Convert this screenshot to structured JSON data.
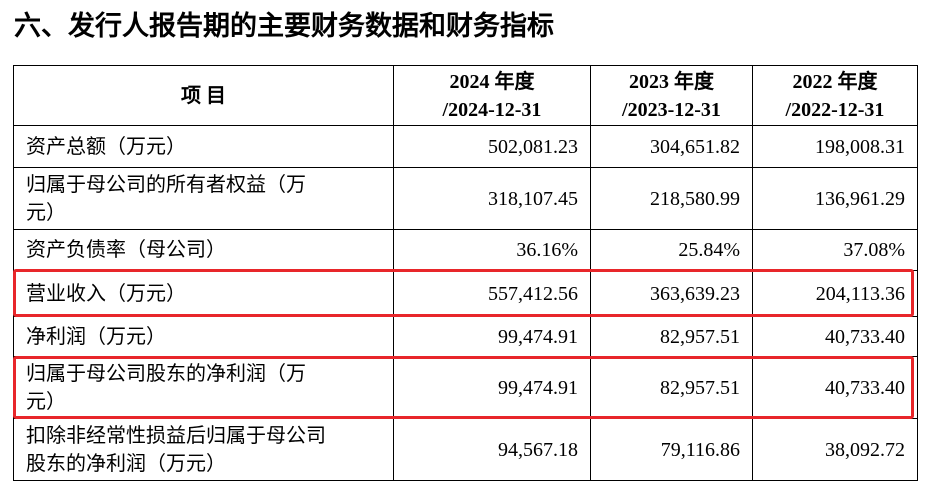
{
  "title": "六、发行人报告期的主要财务数据和财务指标",
  "table": {
    "header": [
      [
        "项 目"
      ],
      [
        "2024 年度",
        "/2024-12-31"
      ],
      [
        "2023 年度",
        "/2023-12-31"
      ],
      [
        "2022 年度",
        "/2022-12-31"
      ]
    ],
    "rows": [
      {
        "label": [
          "资产总额（万元）"
        ],
        "values": [
          "502,081.23",
          "304,651.82",
          "198,008.31"
        ]
      },
      {
        "label": [
          "归属于母公司的所有者权益（万",
          "元）"
        ],
        "values": [
          "318,107.45",
          "218,580.99",
          "136,961.29"
        ]
      },
      {
        "label": [
          "资产负债率（母公司）"
        ],
        "values": [
          "36.16%",
          "25.84%",
          "37.08%"
        ]
      },
      {
        "label": [
          "营业收入（万元）"
        ],
        "values": [
          "557,412.56",
          "363,639.23",
          "204,113.36"
        ]
      },
      {
        "label": [
          "净利润（万元）"
        ],
        "values": [
          "99,474.91",
          "82,957.51",
          "40,733.40"
        ]
      },
      {
        "label": [
          "归属于母公司股东的净利润（万",
          "元）"
        ],
        "values": [
          "99,474.91",
          "82,957.51",
          "40,733.40"
        ]
      },
      {
        "label": [
          "扣除非经常性损益后归属于母公司",
          "股东的净利润（万元）"
        ],
        "values": [
          "94,567.18",
          "79,116.86",
          "38,092.72"
        ]
      }
    ]
  }
}
